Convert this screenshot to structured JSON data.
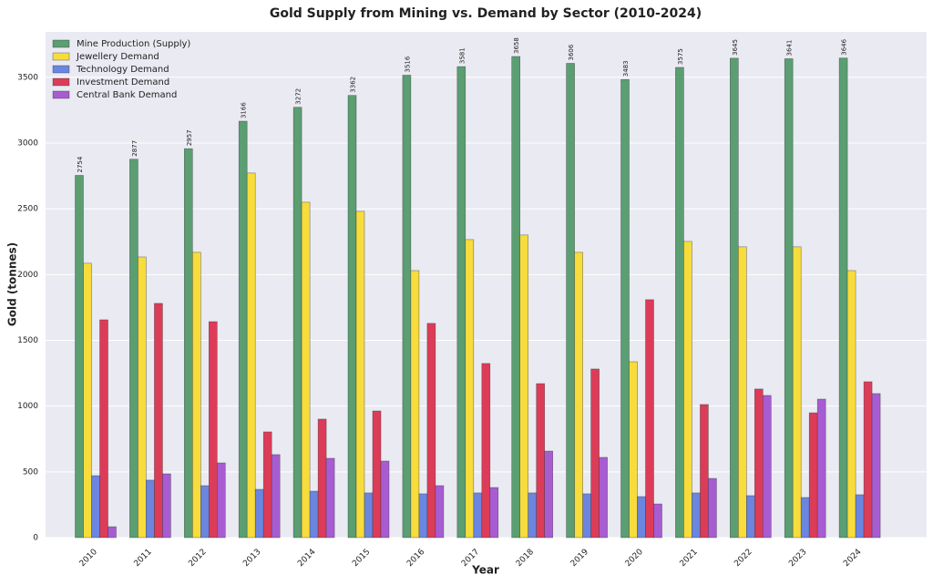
{
  "chart_data": {
    "type": "bar",
    "title": "Gold Supply from Mining vs. Demand by Sector (2010-2024)",
    "x_label": "Year",
    "y_label": "Gold (tonnes)",
    "categories": [
      "2010",
      "2011",
      "2012",
      "2013",
      "2014",
      "2015",
      "2016",
      "2017",
      "2018",
      "2019",
      "2020",
      "2021",
      "2022",
      "2023",
      "2024"
    ],
    "series": [
      {
        "name": "Mine Production (Supply)",
        "color": "#5a9e72",
        "show_values": true,
        "values": [
          2754,
          2877,
          2957,
          3166,
          3272,
          3362,
          3516,
          3581,
          3658,
          3606,
          3483,
          3575,
          3645,
          3641,
          3646
        ]
      },
      {
        "name": "Jewellery Demand",
        "color": "#f7dc3c",
        "values": [
          2086,
          2134,
          2169,
          2772,
          2550,
          2481,
          2030,
          2266,
          2301,
          2169,
          1337,
          2252,
          2211,
          2211,
          2030
        ]
      },
      {
        "name": "Technology Demand",
        "color": "#6a86e0",
        "values": [
          471,
          437,
          395,
          367,
          353,
          340,
          333,
          340,
          340,
          333,
          312,
          340,
          319,
          305,
          326
        ]
      },
      {
        "name": "Investment Demand",
        "color": "#dc3c58",
        "values": [
          1656,
          1781,
          1642,
          804,
          901,
          963,
          1629,
          1324,
          1171,
          1282,
          1809,
          1012,
          1130,
          949,
          1185
        ]
      },
      {
        "name": "Central Bank Demand",
        "color": "#a85cd2",
        "values": [
          83,
          485,
          568,
          631,
          603,
          582,
          395,
          381,
          658,
          610,
          256,
          450,
          1081,
          1053,
          1095
        ]
      }
    ],
    "ylim": [
      0,
      3845
    ],
    "yticks": [
      0,
      500,
      1000,
      1500,
      2000,
      2500,
      3000,
      3500
    ],
    "grid": true,
    "legend": "upper-left"
  }
}
